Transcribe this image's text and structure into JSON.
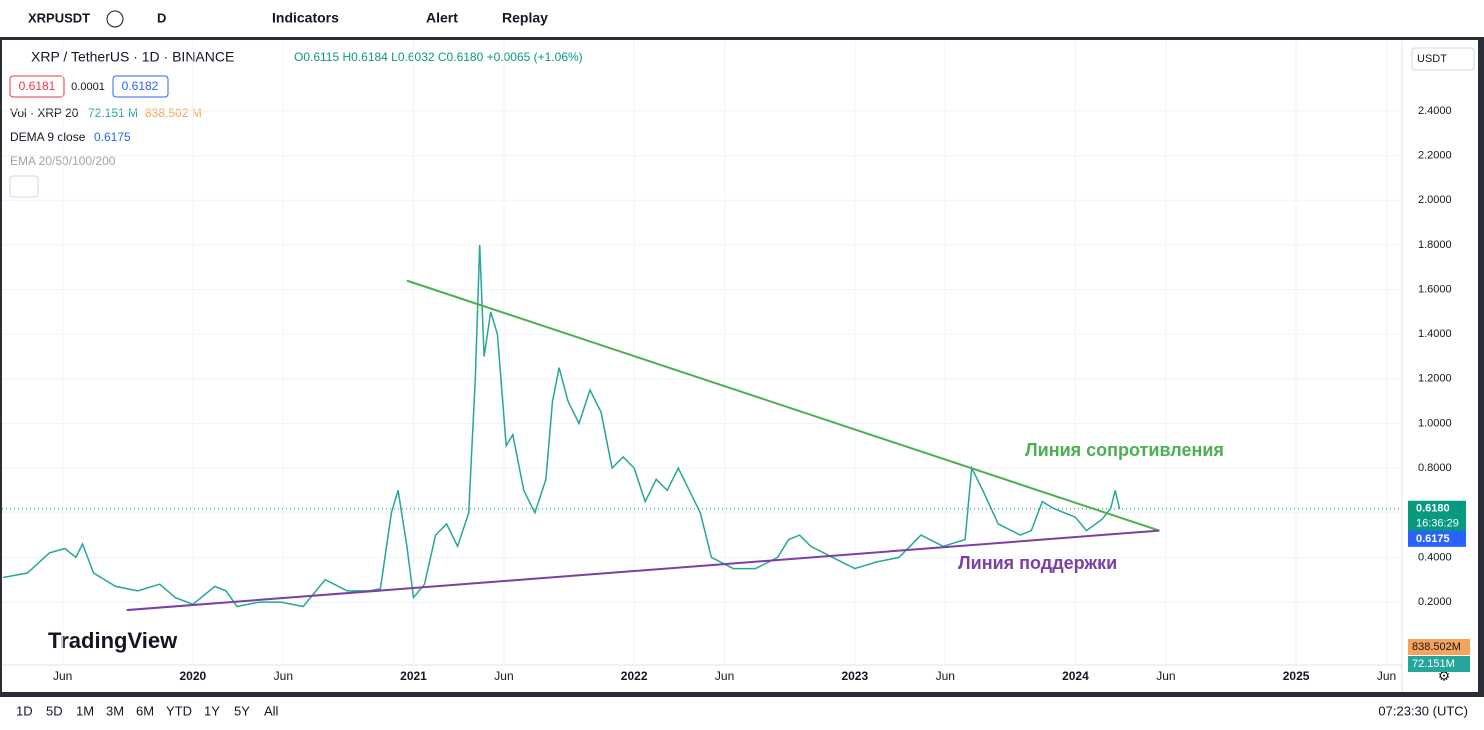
{
  "toolbar": {
    "symbol": "XRPUSDT",
    "interval": "D",
    "indicators": "Indicators",
    "alert": "Alert",
    "replay": "Replay"
  },
  "legend": {
    "title": "XRP / TetherUS · 1D · BINANCE",
    "ohlc": "O0.6115 H0.6184 L0.6032 C0.6180 +0.0065 (+1.06%)",
    "bid": "0.6181",
    "spread": "0.0001",
    "ask": "0.6182",
    "volume": "Vol · XRP 20",
    "volume_ma": "72.151 M",
    "volume_value": "838.502 M",
    "dema": "DEMA 9 close",
    "dema_value": "0.6175",
    "ema": "EMA 20/50/100/200",
    "currency": "USDT"
  },
  "chart_data": {
    "type": "line",
    "color": "#26a69a",
    "x": [
      2019.14,
      2019.25,
      2019.35,
      2019.42,
      2019.47,
      2019.5,
      2019.55,
      2019.65,
      2019.75,
      2019.85,
      2019.92,
      2020.0,
      2020.1,
      2020.15,
      2020.2,
      2020.3,
      2020.4,
      2020.5,
      2020.6,
      2020.7,
      2020.8,
      2020.85,
      2020.9,
      2020.93,
      2020.97,
      2021.0,
      2021.05,
      2021.1,
      2021.15,
      2021.2,
      2021.25,
      2021.28,
      2021.3,
      2021.32,
      2021.35,
      2021.38,
      2021.42,
      2021.45,
      2021.5,
      2021.55,
      2021.6,
      2021.63,
      2021.66,
      2021.7,
      2021.75,
      2021.8,
      2021.85,
      2021.9,
      2021.95,
      2022.0,
      2022.05,
      2022.1,
      2022.15,
      2022.2,
      2022.25,
      2022.3,
      2022.35,
      2022.45,
      2022.55,
      2022.65,
      2022.7,
      2022.75,
      2022.8,
      2022.9,
      2023.0,
      2023.1,
      2023.2,
      2023.25,
      2023.3,
      2023.4,
      2023.5,
      2023.53,
      2023.58,
      2023.65,
      2023.75,
      2023.8,
      2023.85,
      2023.9,
      2023.95,
      2024.0,
      2024.05,
      2024.12,
      2024.16,
      2024.18,
      2024.2
    ],
    "values": [
      0.31,
      0.33,
      0.42,
      0.44,
      0.4,
      0.46,
      0.33,
      0.27,
      0.25,
      0.28,
      0.22,
      0.19,
      0.27,
      0.25,
      0.18,
      0.2,
      0.2,
      0.18,
      0.3,
      0.25,
      0.25,
      0.26,
      0.6,
      0.7,
      0.45,
      0.22,
      0.28,
      0.5,
      0.55,
      0.45,
      0.6,
      1.2,
      1.8,
      1.3,
      1.5,
      1.4,
      0.9,
      0.95,
      0.7,
      0.6,
      0.75,
      1.1,
      1.25,
      1.1,
      1.0,
      1.15,
      1.05,
      0.8,
      0.85,
      0.8,
      0.65,
      0.75,
      0.7,
      0.8,
      0.7,
      0.6,
      0.4,
      0.35,
      0.35,
      0.4,
      0.48,
      0.5,
      0.45,
      0.4,
      0.35,
      0.38,
      0.4,
      0.45,
      0.5,
      0.45,
      0.48,
      0.8,
      0.7,
      0.55,
      0.5,
      0.52,
      0.65,
      0.62,
      0.6,
      0.58,
      0.52,
      0.57,
      0.62,
      0.7,
      0.618
    ],
    "xlim": [
      2019.135,
      2025.48
    ],
    "ylim": [
      -0.082,
      2.718
    ],
    "xticks": [
      {
        "value": 2019.41,
        "label": "Jun"
      },
      {
        "value": 2020,
        "label": "2020"
      },
      {
        "value": 2020.41,
        "label": "Jun"
      },
      {
        "value": 2021,
        "label": "2021"
      },
      {
        "value": 2021.41,
        "label": "Jun"
      },
      {
        "value": 2022,
        "label": "2022"
      },
      {
        "value": 2022.41,
        "label": "Jun"
      },
      {
        "value": 2023,
        "label": "2023"
      },
      {
        "value": 2023.41,
        "label": "Jun"
      },
      {
        "value": 2024,
        "label": "2024"
      },
      {
        "value": 2024.41,
        "label": "Jun"
      },
      {
        "value": 2025,
        "label": "2025"
      },
      {
        "value": 2025.41,
        "label": "Jun"
      }
    ],
    "yticks": [
      {
        "value": 0.2,
        "label": "0.2000"
      },
      {
        "value": 0.4,
        "label": "0.4000"
      },
      {
        "value": 0.6,
        "label": "0.6000"
      },
      {
        "value": 0.8,
        "label": "0.8000"
      },
      {
        "value": 1.0,
        "label": "1.0000"
      },
      {
        "value": 1.2,
        "label": "1.2000"
      },
      {
        "value": 1.4,
        "label": "1.4000"
      },
      {
        "value": 1.6,
        "label": "1.6000"
      },
      {
        "value": 1.8,
        "label": "1.8000"
      },
      {
        "value": 2.0,
        "label": "2.0000"
      },
      {
        "value": 2.2,
        "label": "2.2000"
      },
      {
        "value": 2.4,
        "label": "2.4000"
      }
    ],
    "grid": true,
    "trendlines": [
      {
        "name": "Линия сопротивления",
        "color": "#4caf50",
        "x": [
          2020.97,
          2024.38
        ],
        "values": [
          1.64,
          0.52
        ]
      },
      {
        "name": "Линия поддержки",
        "color": "#7b3fa8",
        "x": [
          2019.7,
          2024.38
        ],
        "values": [
          0.164,
          0.52
        ]
      }
    ],
    "price_marks": [
      {
        "value": 0.618,
        "label": "0.6180",
        "color": "#089981"
      },
      {
        "value": 0.6175,
        "label": "0.6175",
        "color": "#2962ff"
      }
    ],
    "countdown": "16:36:29",
    "volume_labels": [
      "838.502M",
      "72.151M"
    ]
  },
  "brand": "TradingView",
  "footer": {
    "ranges": [
      "1D",
      "5D",
      "1M",
      "3M",
      "6M",
      "YTD",
      "1Y",
      "5Y",
      "All"
    ],
    "clock": "07:23:30 (UTC)"
  }
}
